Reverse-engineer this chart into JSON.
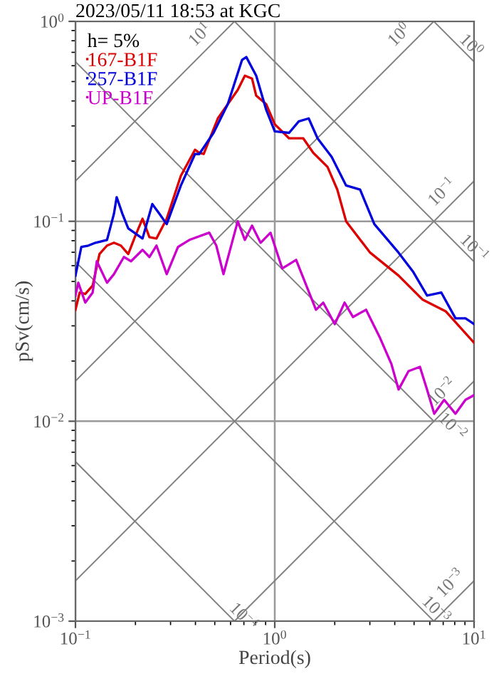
{
  "chart_data": {
    "type": "line",
    "title": "2023/05/11 18:53 at KGC",
    "xlabel": "Period(s)",
    "ylabel": "pSv(cm/s)",
    "legend_title": "h= 5%",
    "log": "xy",
    "grid": true,
    "legend": "top left",
    "line_style": "solid",
    "marker": "none",
    "xlim": [
      0.1,
      10
    ],
    "ylim": [
      0.001,
      1
    ],
    "xticks": [
      {
        "value": 0.1,
        "label": "10$^{−1}$"
      },
      {
        "value": 1,
        "label": "10$^{0}$"
      },
      {
        "value": 10,
        "label": "10$^{1}$"
      }
    ],
    "yticks": [
      {
        "value": 0.001,
        "label": "10$^{−3}$"
      },
      {
        "value": 0.01,
        "label": "10$^{−2}$"
      },
      {
        "value": 0.1,
        "label": "10$^{−1}$"
      },
      {
        "value": 1,
        "label": "10$^{0}$"
      }
    ],
    "series": [
      {
        "name": "167-B1F",
        "color": "#dd0000",
        "x": [
          0.1,
          0.105,
          0.112,
          0.122,
          0.132,
          0.144,
          0.156,
          0.169,
          0.184,
          0.2,
          0.217,
          0.235,
          0.255,
          0.287,
          0.338,
          0.398,
          0.418,
          0.44,
          0.518,
          0.652,
          0.708,
          0.769,
          0.807,
          0.906,
          1.0,
          1.18,
          1.39,
          1.56,
          1.84,
          2.06,
          2.28,
          3.01,
          4.18,
          5.53,
          7.2,
          10
        ],
        "values": [
          0.0361,
          0.044,
          0.0433,
          0.0477,
          0.0686,
          0.0756,
          0.0781,
          0.0756,
          0.0686,
          0.0849,
          0.103,
          0.0834,
          0.082,
          0.103,
          0.169,
          0.228,
          0.22,
          0.217,
          0.327,
          0.454,
          0.535,
          0.518,
          0.425,
          0.385,
          0.306,
          0.26,
          0.26,
          0.22,
          0.187,
          0.144,
          0.1,
          0.0697,
          0.0535,
          0.0405,
          0.0355,
          0.0247
        ]
      },
      {
        "name": "257-B1F",
        "color": "#0000dd",
        "x": [
          0.1,
          0.107,
          0.116,
          0.126,
          0.144,
          0.156,
          0.161,
          0.172,
          0.184,
          0.217,
          0.243,
          0.264,
          0.287,
          0.338,
          0.398,
          0.418,
          0.493,
          0.581,
          0.685,
          0.72,
          0.807,
          0.906,
          1.0,
          1.18,
          1.32,
          1.48,
          1.64,
          1.93,
          2.28,
          2.68,
          3.16,
          4.18,
          4.93,
          5.81,
          6.85,
          8.07,
          9.06,
          10
        ],
        "values": [
          0.0535,
          0.0744,
          0.0756,
          0.0781,
          0.0807,
          0.109,
          0.132,
          0.109,
          0.0921,
          0.082,
          0.122,
          0.109,
          0.0968,
          0.151,
          0.217,
          0.217,
          0.277,
          0.385,
          0.641,
          0.663,
          0.535,
          0.361,
          0.282,
          0.277,
          0.316,
          0.327,
          0.26,
          0.21,
          0.151,
          0.144,
          0.0968,
          0.0697,
          0.0562,
          0.0425,
          0.044,
          0.0327,
          0.0327,
          0.0306
        ]
      },
      {
        "name": "UP-B1F",
        "color": "#cc00cc",
        "x": [
          0.1,
          0.1033,
          0.112,
          0.122,
          0.128,
          0.144,
          0.156,
          0.175,
          0.19,
          0.217,
          0.235,
          0.255,
          0.287,
          0.327,
          0.373,
          0.469,
          0.509,
          0.553,
          0.652,
          0.708,
          0.769,
          0.849,
          0.952,
          1.09,
          1.28,
          1.61,
          1.75,
          2.0,
          2.24,
          2.47,
          2.87,
          3.38,
          3.85,
          4.18,
          4.69,
          5.35,
          5.81,
          6.31,
          7.08,
          8.07,
          9.06,
          10
        ],
        "values": [
          0.0425,
          0.0493,
          0.0392,
          0.044,
          0.0631,
          0.0493,
          0.0544,
          0.0663,
          0.0631,
          0.072,
          0.0663,
          0.0756,
          0.0544,
          0.0744,
          0.0807,
          0.0877,
          0.0756,
          0.0544,
          0.1,
          0.0807,
          0.0952,
          0.0781,
          0.0877,
          0.0581,
          0.0641,
          0.0361,
          0.0392,
          0.0306,
          0.0392,
          0.0332,
          0.0361,
          0.026,
          0.0193,
          0.0144,
          0.0178,
          0.0187,
          0.0144,
          0.0109,
          0.0128,
          0.0109,
          0.0128,
          0.0135
        ]
      },
      {
        "color": "#808080",
        "x": [
          0.1,
          0.628
        ],
        "values": [
          0.159,
          1
        ]
      },
      {
        "color": "#808080",
        "x": [
          0.1,
          6.28
        ],
        "values": [
          0.0159,
          1
        ]
      },
      {
        "color": "#808080",
        "x": [
          0.1,
          10
        ],
        "values": [
          0.00159,
          0.159
        ]
      },
      {
        "color": "#808080",
        "x": [
          0.628,
          10
        ],
        "values": [
          0.001,
          0.0159
        ]
      },
      {
        "color": "#808080",
        "x": [
          6.28,
          10
        ],
        "values": [
          0.001,
          0.00159
        ]
      },
      {
        "color": "#808080",
        "x": [
          6.28,
          10
        ],
        "values": [
          1,
          0.628
        ]
      },
      {
        "color": "#808080",
        "x": [
          0.628,
          10
        ],
        "values": [
          1,
          0.0628
        ]
      },
      {
        "color": "#808080",
        "x": [
          0.1,
          6.28
        ],
        "values": [
          0.628,
          0.01
        ]
      },
      {
        "color": "#808080",
        "x": [
          0.1,
          6.28
        ],
        "values": [
          0.0628,
          0.001
        ]
      },
      {
        "color": "#808080",
        "x": [
          0.1,
          0.628
        ],
        "values": [
          0.00628,
          0.001
        ]
      }
    ],
    "annotations": [
      {
        "text": "10$^{1}$",
        "x": 0.477,
        "y": 0.759
      },
      {
        "text": "10$^{0}$",
        "x": 4.77,
        "y": 0.759
      },
      {
        "text": "10$^{0}$",
        "x": 7.8,
        "y": 0.805
      },
      {
        "text": "10$^{−1}$",
        "x": 7.81,
        "y": 0.124
      },
      {
        "text": "10$^{−1}$",
        "x": 8.07,
        "y": 0.0778
      },
      {
        "text": "10$^{−2}$",
        "x": 7.81,
        "y": 0.0124
      },
      {
        "text": "10$^{−2}$",
        "x": 6.28,
        "y": 0.01
      },
      {
        "text": "10$^{−3}$",
        "x": 8.6,
        "y": 0.00137
      },
      {
        "text": "10$^{−3}$",
        "x": 5.2,
        "y": 0.00121
      },
      {
        "text": "10$^{−4}$",
        "x": 0.562,
        "y": 0.00112
      }
    ]
  }
}
